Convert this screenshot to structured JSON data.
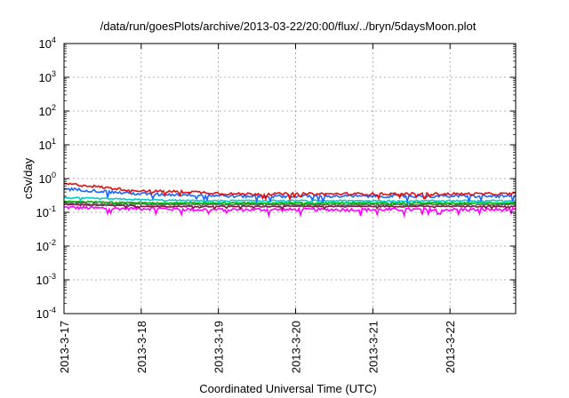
{
  "chart_data": {
    "type": "line",
    "title": "/data/run/goesPlots/archive/2013-03-22/20:00/flux/../bryn/5daysMoon.plot",
    "xlabel": "Coordinated Universal Time (UTC)",
    "ylabel": "cSv/day",
    "yscale": "log",
    "ylim": [
      0.0001,
      10000
    ],
    "xlim": [
      0,
      5.85
    ],
    "grid": true,
    "x_ticks": [
      {
        "value": 0,
        "label": "2013-3-17"
      },
      {
        "value": 1,
        "label": "2013-3-18"
      },
      {
        "value": 2,
        "label": "2013-3-19"
      },
      {
        "value": 3,
        "label": "2013-3-20"
      },
      {
        "value": 4,
        "label": "2013-3-21"
      },
      {
        "value": 5,
        "label": "2013-3-22"
      }
    ],
    "y_ticks": [
      {
        "value": 0.0001,
        "base": "10",
        "exp": "-4"
      },
      {
        "value": 0.001,
        "base": "10",
        "exp": "-3"
      },
      {
        "value": 0.01,
        "base": "10",
        "exp": "-2"
      },
      {
        "value": 0.1,
        "base": "10",
        "exp": "-1"
      },
      {
        "value": 1,
        "base": "10",
        "exp": "0"
      },
      {
        "value": 10,
        "base": "10",
        "exp": "1"
      },
      {
        "value": 100,
        "base": "10",
        "exp": "2"
      },
      {
        "value": 1000,
        "base": "10",
        "exp": "3"
      },
      {
        "value": 10000,
        "base": "10",
        "exp": "4"
      }
    ],
    "series": [
      {
        "color": "#ff00ff",
        "x": [
          0,
          0.6,
          1.2,
          1.7,
          2.2,
          2.7,
          3.2,
          3.7,
          4.2,
          4.7,
          5.2,
          5.85
        ],
        "values": [
          0.14,
          0.13,
          0.13,
          0.12,
          0.12,
          0.12,
          0.12,
          0.12,
          0.12,
          0.12,
          0.12,
          0.12
        ],
        "noise": 0.22
      },
      {
        "color": "#7a1a3a",
        "x": [
          0,
          0.6,
          1.2,
          1.7,
          2.2,
          2.7,
          3.2,
          3.7,
          4.2,
          4.7,
          5.2,
          5.85
        ],
        "values": [
          0.17,
          0.16,
          0.15,
          0.15,
          0.15,
          0.15,
          0.15,
          0.15,
          0.15,
          0.15,
          0.15,
          0.15
        ],
        "noise": 0.08
      },
      {
        "color": "#606060",
        "x": [
          0,
          0.6,
          1.2,
          1.7,
          2.2,
          2.7,
          3.2,
          3.7,
          4.2,
          4.7,
          5.2,
          5.85
        ],
        "values": [
          0.19,
          0.18,
          0.17,
          0.17,
          0.17,
          0.17,
          0.17,
          0.17,
          0.17,
          0.17,
          0.17,
          0.17
        ],
        "noise": 0.08
      },
      {
        "color": "#00b000",
        "x": [
          0,
          0.6,
          1.2,
          1.7,
          2.2,
          2.7,
          3.2,
          3.7,
          4.2,
          4.7,
          5.2,
          5.85
        ],
        "values": [
          0.21,
          0.2,
          0.19,
          0.19,
          0.19,
          0.19,
          0.19,
          0.19,
          0.19,
          0.19,
          0.19,
          0.19
        ],
        "noise": 0.08
      },
      {
        "color": "#00cccc",
        "x": [
          0,
          0.6,
          1.2,
          1.7,
          2.2,
          2.7,
          3.2,
          3.7,
          4.2,
          4.7,
          5.2,
          5.85
        ],
        "values": [
          0.27,
          0.25,
          0.23,
          0.22,
          0.22,
          0.22,
          0.22,
          0.22,
          0.22,
          0.22,
          0.22,
          0.22
        ],
        "noise": 0.1
      },
      {
        "color": "#1a66ff",
        "x": [
          0,
          0.3,
          0.6,
          0.9,
          1.2,
          1.7,
          2.2,
          2.7,
          3.2,
          3.7,
          4.2,
          4.7,
          5.2,
          5.85
        ],
        "values": [
          0.5,
          0.45,
          0.4,
          0.36,
          0.34,
          0.33,
          0.3,
          0.3,
          0.3,
          0.3,
          0.3,
          0.3,
          0.3,
          0.3
        ],
        "noise": 0.2
      },
      {
        "color": "#e01010",
        "x": [
          0,
          0.3,
          0.6,
          0.9,
          1.2,
          1.7,
          2.2,
          2.7,
          3.2,
          3.7,
          4.2,
          4.7,
          5.2,
          5.85
        ],
        "values": [
          0.7,
          0.62,
          0.52,
          0.45,
          0.42,
          0.4,
          0.35,
          0.35,
          0.35,
          0.35,
          0.35,
          0.35,
          0.35,
          0.35
        ],
        "noise": 0.18
      }
    ]
  }
}
